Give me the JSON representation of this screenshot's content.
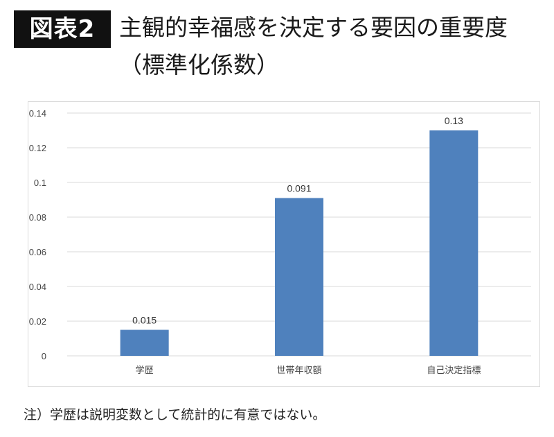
{
  "header": {
    "figure_label": "図表2",
    "title_line1": "主観的幸福感を決定する要因の重要度",
    "title_line2": "（標準化係数）"
  },
  "footnote": "注）学歴は説明変数として統計的に有意ではない。",
  "colors": {
    "bar": "#4f81bd",
    "gridline": "#d9d9d9",
    "badge_bg": "#111111"
  },
  "chart_data": {
    "type": "bar",
    "categories": [
      "学歴",
      "世帯年収額",
      "自己決定指標"
    ],
    "values": [
      0.015,
      0.091,
      0.13
    ],
    "data_labels": [
      "0.015",
      "0.091",
      "0.13"
    ],
    "yticks": [
      0,
      0.02,
      0.04,
      0.06,
      0.08,
      0.1,
      0.12,
      0.14
    ],
    "ytick_labels": [
      "0",
      "0.02",
      "0.04",
      "0.06",
      "0.08",
      "0.1",
      "0.12",
      "0.14"
    ],
    "ylim": [
      0,
      0.14
    ],
    "grid": true,
    "legend": "none",
    "title": "",
    "xlabel": "",
    "ylabel": ""
  }
}
